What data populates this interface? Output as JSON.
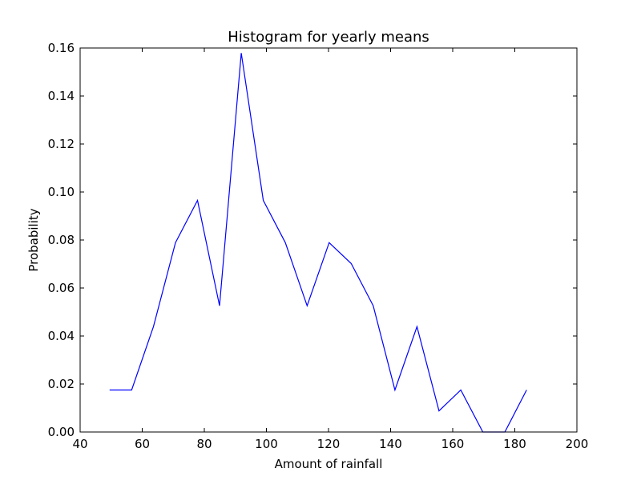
{
  "chart_data": {
    "type": "line",
    "title": "Histogram for yearly means",
    "xlabel": "Amount of rainfall",
    "ylabel": "Probability",
    "xlim": [
      40,
      200
    ],
    "ylim": [
      0.0,
      0.16
    ],
    "xticks": [
      40,
      60,
      80,
      100,
      120,
      140,
      160,
      180,
      200
    ],
    "yticks": [
      0.0,
      0.02,
      0.04,
      0.06,
      0.08,
      0.1,
      0.12,
      0.14,
      0.16
    ],
    "xtick_labels": [
      "40",
      "60",
      "80",
      "100",
      "120",
      "140",
      "160",
      "180",
      "200"
    ],
    "ytick_labels": [
      "0.00",
      "0.02",
      "0.04",
      "0.06",
      "0.08",
      "0.10",
      "0.12",
      "0.14",
      "0.16"
    ],
    "grid": false,
    "series": [
      {
        "color": "#0000ff",
        "x": [
          49.5,
          56.6,
          63.6,
          70.7,
          77.8,
          84.9,
          91.9,
          99.0,
          106.1,
          113.1,
          120.2,
          127.3,
          134.4,
          141.4,
          148.5,
          155.6,
          162.6,
          169.7,
          176.8,
          183.8
        ],
        "y": [
          0.0175,
          0.0175,
          0.0439,
          0.0789,
          0.0965,
          0.0526,
          0.1579,
          0.0965,
          0.0789,
          0.0526,
          0.0789,
          0.0702,
          0.0526,
          0.0175,
          0.0439,
          0.0088,
          0.0175,
          0.0,
          0.0,
          0.0175
        ]
      }
    ]
  }
}
